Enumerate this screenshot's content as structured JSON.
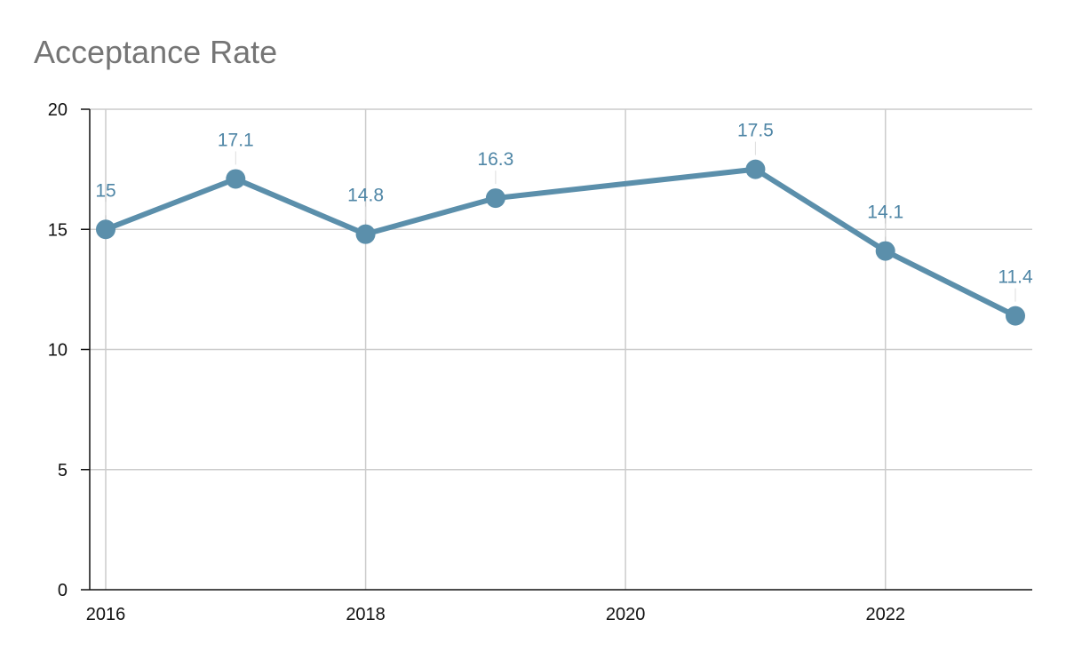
{
  "chart_data": {
    "type": "line",
    "title": "Acceptance Rate",
    "xlabel": "",
    "ylabel": "",
    "x": [
      2016,
      2017,
      2018,
      2019,
      2021,
      2022,
      2023
    ],
    "series": [
      {
        "values": [
          15,
          17.1,
          14.8,
          16.3,
          17.5,
          14.1,
          11.4
        ]
      }
    ],
    "xlim": [
      2016,
      2023
    ],
    "ylim": [
      0,
      20
    ],
    "x_ticks": [
      "2016",
      "2018",
      "2020",
      "2022"
    ],
    "y_ticks": [
      "0",
      "5",
      "10",
      "15",
      "20"
    ],
    "data_labels": [
      "15",
      "17.1",
      "14.8",
      "16.3",
      "17.5",
      "14.1",
      "11.4"
    ],
    "grid": true,
    "legend": "none",
    "colors": {
      "series": "#5b8fab",
      "label": "#4f86a6",
      "grid": "#cccccc",
      "axis": "#111111"
    }
  }
}
